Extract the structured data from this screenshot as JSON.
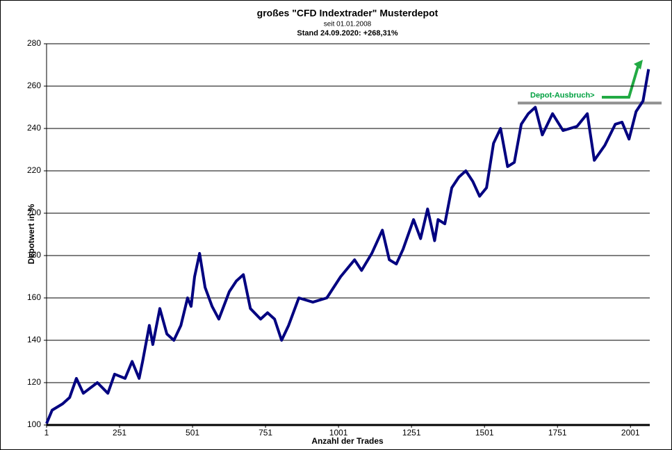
{
  "chart_data": {
    "type": "line",
    "title": "großes \"CFD Indextrader\" Musterdepot",
    "subtitle": "seit 01.01.2008",
    "subtitle2": "Stand 24.09.2020: +268,31%",
    "x_label": "Anzahl der Trades",
    "y_label": "Depotwert in %",
    "x": [
      1,
      20,
      56,
      80,
      103,
      127,
      175,
      211,
      234,
      270,
      294,
      318,
      330,
      353,
      365,
      389,
      413,
      437,
      461,
      484,
      496,
      508,
      525,
      544,
      568,
      591,
      627,
      651,
      675,
      699,
      734,
      758,
      782,
      806,
      830,
      865,
      913,
      961,
      1008,
      1056,
      1080,
      1115,
      1151,
      1175,
      1199,
      1222,
      1258,
      1282,
      1306,
      1330,
      1342,
      1365,
      1389,
      1413,
      1437,
      1461,
      1484,
      1508,
      1532,
      1556,
      1580,
      1603,
      1627,
      1651,
      1675,
      1699,
      1734,
      1770,
      1818,
      1853,
      1877,
      1913,
      1949,
      1972,
      1996,
      2020,
      2044,
      2063
    ],
    "series": [
      {
        "name": "Depotwert",
        "color": "#000080",
        "values": [
          100.7,
          107,
          110,
          113,
          122,
          115,
          120,
          115,
          124,
          122,
          130,
          122,
          130,
          147,
          138,
          155,
          143,
          140,
          147,
          160,
          156,
          170,
          181,
          165,
          156,
          150,
          163,
          168,
          171,
          155,
          150,
          153,
          150,
          140,
          147,
          160,
          158,
          160,
          170,
          178,
          173,
          181,
          192,
          178,
          176,
          183,
          197,
          188,
          202,
          187,
          197,
          195,
          212,
          217,
          220,
          215,
          208,
          212,
          233,
          240,
          222,
          224,
          242,
          247,
          250,
          237,
          247,
          239,
          241,
          247,
          225,
          232,
          242,
          243,
          235,
          248,
          253,
          268
        ]
      }
    ],
    "xlim": [
      1,
      2067
    ],
    "xticks": [
      1,
      251,
      501,
      751,
      1001,
      1251,
      1501,
      1751,
      2001
    ],
    "ylim": [
      100,
      280
    ],
    "yticks": [
      100,
      120,
      140,
      160,
      180,
      200,
      220,
      240,
      260,
      280
    ],
    "grid": true,
    "annotation": {
      "text": "Depot-Ausbruch>",
      "y": 252,
      "color": "#00a040"
    }
  }
}
